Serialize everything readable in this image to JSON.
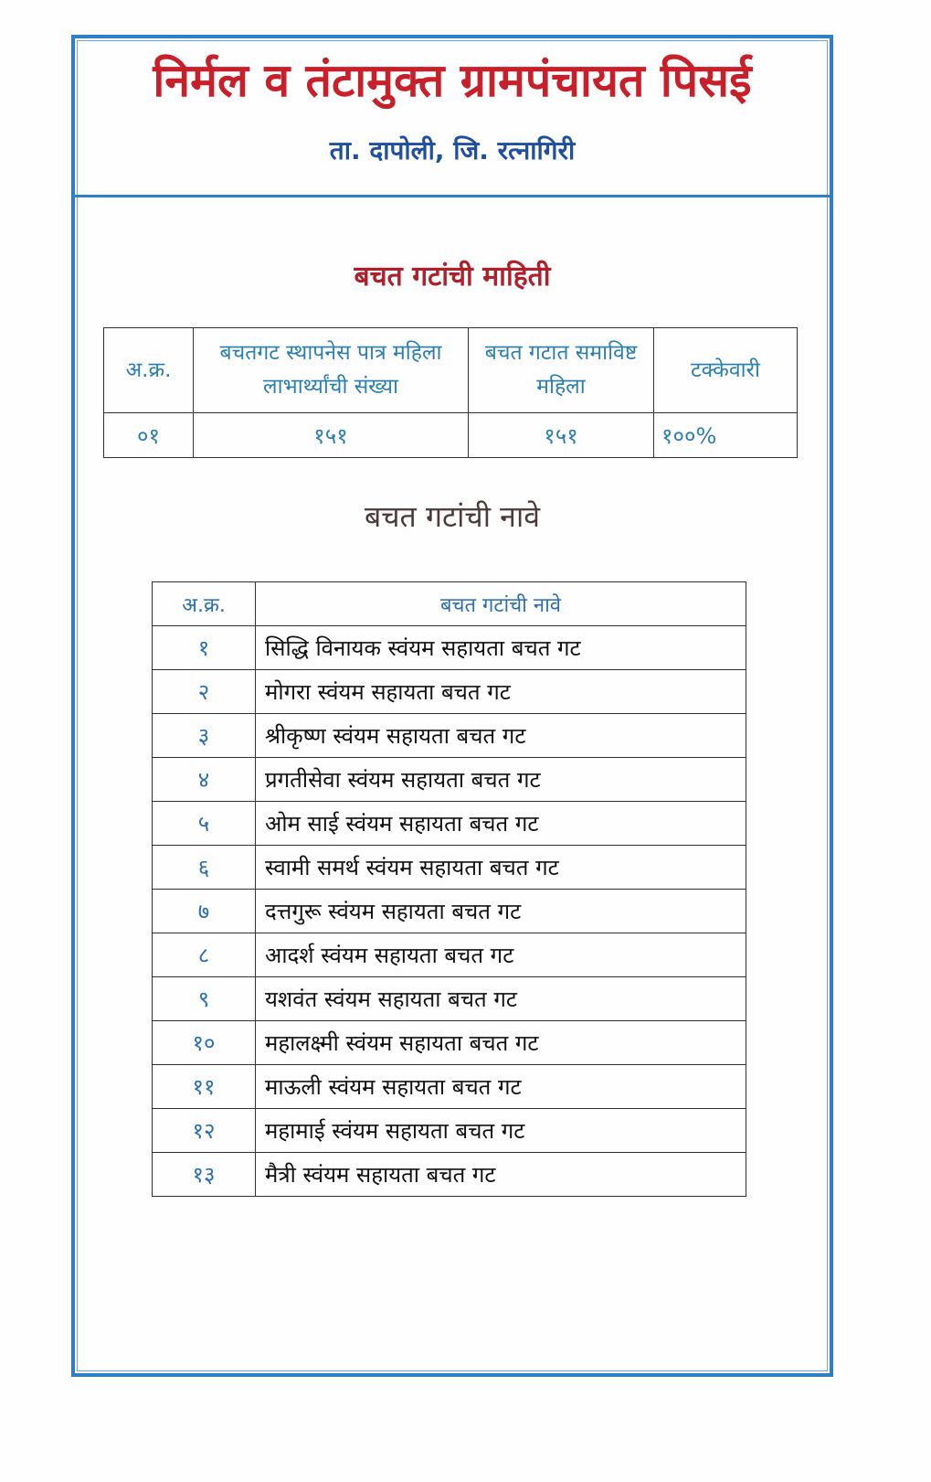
{
  "header": {
    "title": "निर्मल व तंटामुक्त ग्रामपंचायत पिसई",
    "subtitle": "ता. दापोली, जि. रत्नागिरी"
  },
  "summary": {
    "title": "बचत गटांची माहिती",
    "columns": [
      "अ.क्र.",
      "बचतगट स्थापनेस पात्र महिला लाभार्थ्यांची संख्या",
      "बचत गटात समाविष्ट महिला",
      "टक्केवारी"
    ],
    "rows": [
      [
        "०१",
        "१५१",
        "१५१",
        "१००%"
      ]
    ]
  },
  "groups": {
    "title": "बचत गटांची नावे",
    "columns": [
      "अ.क्र.",
      "बचत गटांची नावे"
    ],
    "rows": [
      [
        "१",
        "सिद्धि विनायक स्वंयम सहायता बचत गट"
      ],
      [
        "२",
        "मोगरा स्वंयम सहायता बचत गट"
      ],
      [
        "३",
        "श्रीकृष्ण स्वंयम सहायता बचत गट"
      ],
      [
        "४",
        "प्रगतीसेवा स्वंयम सहायता बचत गट"
      ],
      [
        "५",
        "ओम साई स्वंयम सहायता बचत गट"
      ],
      [
        "६",
        "स्वामी समर्थ स्वंयम सहायता बचत गट"
      ],
      [
        "७",
        "दत्तगुरू स्वंयम सहायता बचत गट"
      ],
      [
        "८",
        "आदर्श स्वंयम सहायता बचत गट"
      ],
      [
        "९",
        "यशवंत स्वंयम सहायता बचत गट"
      ],
      [
        "१०",
        "महालक्ष्मी स्वंयम सहायता बचत गट"
      ],
      [
        "११",
        "माऊली स्वंयम सहायता बचत गट"
      ],
      [
        "१२",
        "महामाई स्वंयम सहायता बचत गट"
      ],
      [
        "१३",
        "मैत्री स्वंयम सहायता बचत गट"
      ]
    ]
  },
  "colors": {
    "border": "#2f7fc4",
    "title": "#c8202a",
    "subtitle": "#1f4fa0",
    "table_text": "#2a7fb0"
  }
}
